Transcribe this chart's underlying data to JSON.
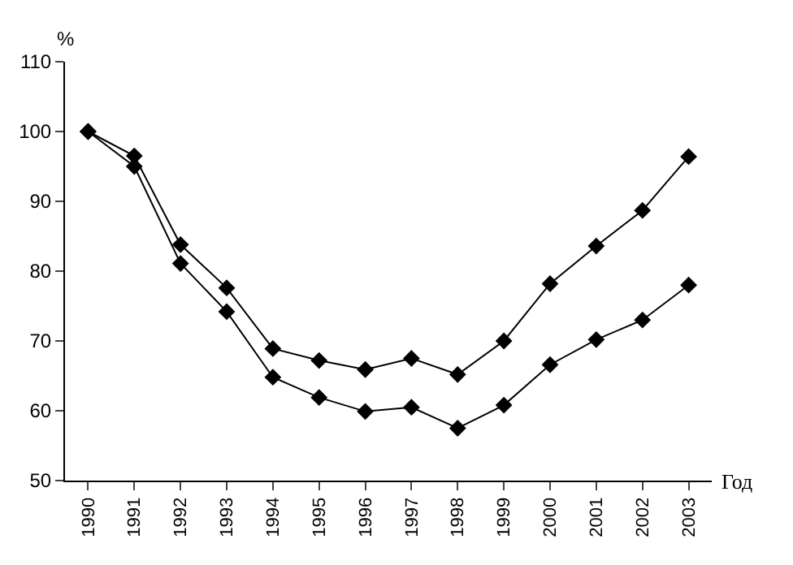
{
  "chart_data": {
    "type": "line",
    "xlabel": "Год",
    "ylabel": "%",
    "categories": [
      "1990",
      "1991",
      "1992",
      "1993",
      "1994",
      "1995",
      "1996",
      "1997",
      "1998",
      "1999",
      "2000",
      "2001",
      "2002",
      "2003"
    ],
    "series": [
      {
        "color": "#000000",
        "values": [
          100,
          96.5,
          83.8,
          77.6,
          68.9,
          67.2,
          65.9,
          67.5,
          65.2,
          70.0,
          78.2,
          83.6,
          88.7,
          96.4
        ]
      },
      {
        "color": "#000000",
        "values": [
          100,
          95.0,
          81.1,
          74.2,
          64.8,
          61.9,
          59.9,
          60.5,
          57.5,
          60.8,
          66.6,
          70.2,
          73.0,
          78.0
        ]
      }
    ],
    "ylim": [
      50,
      110
    ],
    "yticks": [
      50,
      60,
      70,
      80,
      90,
      100,
      110
    ],
    "grid": false,
    "marker": "diamond",
    "line_style": "solid"
  }
}
